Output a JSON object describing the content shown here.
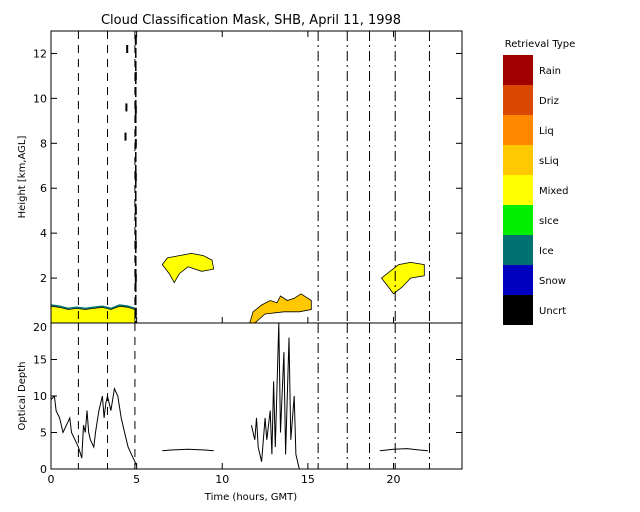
{
  "chart_data": [
    {
      "type": "heatmap",
      "title": "Cloud Classification Mask, SHB, April 11, 1998",
      "ylabel": "Height [km,AGL]",
      "xlim": [
        0,
        24
      ],
      "ylim": [
        0,
        13
      ],
      "yticks": [
        2,
        4,
        6,
        8,
        10,
        12
      ],
      "vertical_markers_dashed": [
        1.6,
        3.3,
        4.9
      ],
      "vertical_markers_dashdot": [
        15.6,
        17.3,
        18.6,
        20.1,
        22.1
      ],
      "legend": {
        "title": "Retrieval Type",
        "placement": "right",
        "entries": [
          {
            "label": "Rain",
            "color": "#a00000"
          },
          {
            "label": "Driz",
            "color": "#d84800"
          },
          {
            "label": "Liq",
            "color": "#ff8800"
          },
          {
            "label": "sLiq",
            "color": "#ffc800"
          },
          {
            "label": "Mixed",
            "color": "#ffff00"
          },
          {
            "label": "sIce",
            "color": "#00ee00"
          },
          {
            "label": "Ice",
            "color": "#007070"
          },
          {
            "label": "Snow",
            "color": "#0000c0"
          },
          {
            "label": "Uncrt",
            "color": "#000000"
          }
        ]
      },
      "regions": [
        {
          "class": "Mixed",
          "points": [
            [
              0,
              0
            ],
            [
              0,
              0.75
            ],
            [
              0.5,
              0.7
            ],
            [
              1.0,
              0.6
            ],
            [
              1.5,
              0.65
            ],
            [
              2.0,
              0.6
            ],
            [
              2.5,
              0.65
            ],
            [
              3.0,
              0.7
            ],
            [
              3.5,
              0.6
            ],
            [
              4.0,
              0.75
            ],
            [
              4.5,
              0.7
            ],
            [
              4.9,
              0.6
            ],
            [
              4.9,
              0
            ]
          ]
        },
        {
          "class": "Mixed",
          "points": [
            [
              6.5,
              2.6
            ],
            [
              6.8,
              2.9
            ],
            [
              7.5,
              3.0
            ],
            [
              8.2,
              3.1
            ],
            [
              8.9,
              3.0
            ],
            [
              9.4,
              2.8
            ],
            [
              9.5,
              2.4
            ],
            [
              8.8,
              2.3
            ],
            [
              8.0,
              2.5
            ],
            [
              7.5,
              2.2
            ],
            [
              7.2,
              1.8
            ],
            [
              6.9,
              2.2
            ]
          ]
        },
        {
          "class": "sLiq",
          "points": [
            [
              11.6,
              0.0
            ],
            [
              11.8,
              0.5
            ],
            [
              12.3,
              0.8
            ],
            [
              12.8,
              1.0
            ],
            [
              13.2,
              0.9
            ],
            [
              13.4,
              1.2
            ],
            [
              13.8,
              1.0
            ],
            [
              14.2,
              1.1
            ],
            [
              14.6,
              1.3
            ],
            [
              15.2,
              1.0
            ],
            [
              15.2,
              0.6
            ],
            [
              14.5,
              0.5
            ],
            [
              13.6,
              0.5
            ],
            [
              12.5,
              0.4
            ],
            [
              11.9,
              0.0
            ]
          ]
        },
        {
          "class": "Mixed",
          "points": [
            [
              19.3,
              2.0
            ],
            [
              19.8,
              2.3
            ],
            [
              20.3,
              2.6
            ],
            [
              21.0,
              2.7
            ],
            [
              21.8,
              2.6
            ],
            [
              21.8,
              2.1
            ],
            [
              21.0,
              2.0
            ],
            [
              20.5,
              1.6
            ],
            [
              20.0,
              1.3
            ],
            [
              19.6,
              1.7
            ]
          ]
        }
      ],
      "edge_lines": [
        {
          "class": "Ice",
          "points": [
            [
              0,
              0.8
            ],
            [
              0.5,
              0.75
            ],
            [
              1.0,
              0.65
            ],
            [
              1.5,
              0.7
            ],
            [
              2.0,
              0.65
            ],
            [
              2.5,
              0.7
            ],
            [
              3.0,
              0.75
            ],
            [
              3.5,
              0.65
            ],
            [
              4.0,
              0.8
            ],
            [
              4.5,
              0.75
            ],
            [
              4.9,
              0.65
            ]
          ]
        }
      ],
      "uncertain_marks": [
        [
          4.95,
          12.6
        ],
        [
          4.95,
          11.0
        ],
        [
          4.95,
          9.5
        ],
        [
          4.95,
          8.0
        ],
        [
          4.95,
          6.5
        ],
        [
          4.95,
          5.0
        ],
        [
          4.95,
          3.5
        ],
        [
          4.95,
          2.0
        ],
        [
          4.95,
          0.5
        ],
        [
          4.45,
          12.2
        ],
        [
          4.4,
          9.6
        ],
        [
          4.35,
          8.3
        ]
      ]
    },
    {
      "type": "line",
      "xlabel": "Time (hours, GMT)",
      "ylabel": "Optical Depth",
      "xlim": [
        0,
        24
      ],
      "ylim": [
        0,
        20
      ],
      "xticks": [
        0,
        5,
        10,
        15,
        20
      ],
      "yticks": [
        0,
        5,
        10,
        15,
        20
      ],
      "vertical_markers_dashed": [
        1.6,
        3.3,
        4.9
      ],
      "vertical_markers_dashdot": [
        15.6,
        17.3,
        18.6,
        20.1,
        22.1
      ],
      "series": [
        {
          "values": [
            [
              0,
              9.5
            ],
            [
              0.2,
              10
            ],
            [
              0.3,
              8
            ],
            [
              0.5,
              7
            ],
            [
              0.7,
              5
            ],
            [
              0.9,
              6
            ],
            [
              1.1,
              7
            ],
            [
              1.2,
              5
            ],
            [
              1.4,
              4
            ],
            [
              1.6,
              3
            ],
            [
              1.8,
              1.5
            ],
            [
              1.9,
              6
            ],
            [
              2.0,
              5
            ],
            [
              2.1,
              8
            ],
            [
              2.2,
              5
            ],
            [
              2.3,
              4
            ],
            [
              2.5,
              3
            ],
            [
              2.6,
              5
            ],
            [
              2.8,
              8
            ],
            [
              3.0,
              10
            ],
            [
              3.1,
              7
            ],
            [
              3.2,
              9
            ],
            [
              3.3,
              10
            ],
            [
              3.5,
              8
            ],
            [
              3.7,
              11
            ],
            [
              3.9,
              10
            ],
            [
              4.1,
              7
            ],
            [
              4.3,
              5
            ],
            [
              4.5,
              3
            ],
            [
              4.7,
              2
            ],
            [
              4.9,
              1
            ],
            [
              5.0,
              0.5
            ]
          ]
        },
        {
          "values": [
            [
              6.5,
              2.5
            ],
            [
              7,
              2.6
            ],
            [
              8,
              2.7
            ],
            [
              9,
              2.6
            ],
            [
              9.5,
              2.5
            ]
          ]
        },
        {
          "values": [
            [
              11.7,
              6
            ],
            [
              11.9,
              4
            ],
            [
              12.0,
              7
            ],
            [
              12.1,
              3
            ],
            [
              12.3,
              1
            ],
            [
              12.5,
              7
            ],
            [
              12.6,
              4
            ],
            [
              12.8,
              8
            ],
            [
              12.9,
              2
            ],
            [
              13.0,
              12
            ],
            [
              13.1,
              3
            ],
            [
              13.3,
              20
            ],
            [
              13.4,
              5
            ],
            [
              13.6,
              16
            ],
            [
              13.7,
              2
            ],
            [
              13.9,
              18
            ],
            [
              14.0,
              4
            ],
            [
              14.2,
              10
            ],
            [
              14.3,
              2
            ],
            [
              14.5,
              0
            ]
          ]
        },
        {
          "values": [
            [
              19.2,
              2.5
            ],
            [
              20,
              2.7
            ],
            [
              20.8,
              2.8
            ],
            [
              21.5,
              2.6
            ],
            [
              22,
              2.5
            ]
          ]
        }
      ]
    }
  ]
}
